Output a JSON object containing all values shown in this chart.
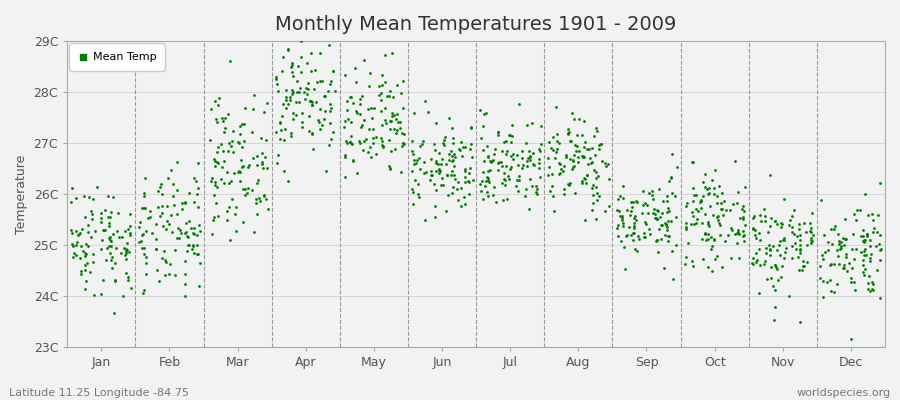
{
  "title": "Monthly Mean Temperatures 1901 - 2009",
  "ylabel": "Temperature",
  "xlabel_bottom_left": "Latitude 11.25 Longitude -84.75",
  "xlabel_bottom_right": "worldspecies.org",
  "dot_color": "#008000",
  "background_color": "#f2f2f2",
  "plot_bg_color": "#f2f2f2",
  "ylim_min": 23,
  "ylim_max": 29,
  "ytick_labels": [
    "23C",
    "24C",
    "25C",
    "26C",
    "27C",
    "28C",
    "29C"
  ],
  "ytick_values": [
    23,
    24,
    25,
    26,
    27,
    28,
    29
  ],
  "month_names": [
    "Jan",
    "Feb",
    "Mar",
    "Apr",
    "May",
    "Jun",
    "Jul",
    "Aug",
    "Sep",
    "Oct",
    "Nov",
    "Dec"
  ],
  "n_years": 109,
  "monthly_means": [
    25.1,
    25.2,
    26.6,
    27.9,
    27.3,
    26.5,
    26.6,
    26.6,
    25.5,
    25.5,
    25.0,
    24.9
  ],
  "monthly_stds": [
    0.55,
    0.6,
    0.65,
    0.62,
    0.58,
    0.45,
    0.45,
    0.48,
    0.4,
    0.42,
    0.5,
    0.5
  ],
  "legend_label": "Mean Temp",
  "marker_size": 4,
  "title_fontsize": 14,
  "axis_label_fontsize": 9,
  "tick_fontsize": 9
}
